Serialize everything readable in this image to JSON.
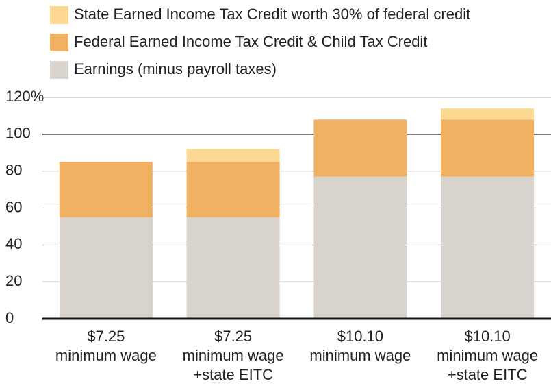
{
  "chart_data": {
    "type": "stacked_bar",
    "categories": [
      [
        "$7.25",
        "minimum wage"
      ],
      [
        "$7.25",
        "minimum wage",
        "+state EITC"
      ],
      [
        "$10.10",
        "minimum wage"
      ],
      [
        "$10.10",
        "minimum wage",
        "+state EITC"
      ]
    ],
    "series": [
      {
        "name": "Earnings (minus payroll taxes)",
        "color": "#d9d3cd",
        "values": [
          55,
          55,
          77,
          77
        ]
      },
      {
        "name": "Federal Earned Income Tax Credit & Child Tax Credit",
        "color": "#f0b163",
        "values": [
          30,
          30,
          31,
          31
        ]
      },
      {
        "name": "State Earned Income Tax Credit worth 30% of federal credit",
        "color": "#fdd892",
        "values": [
          null,
          7,
          null,
          6
        ]
      }
    ],
    "ylim": [
      0,
      120
    ],
    "yticks": [
      0,
      20,
      40,
      60,
      80,
      100,
      {
        "value": 120,
        "label": "120%"
      }
    ],
    "grid": true,
    "reference_line": 100
  }
}
